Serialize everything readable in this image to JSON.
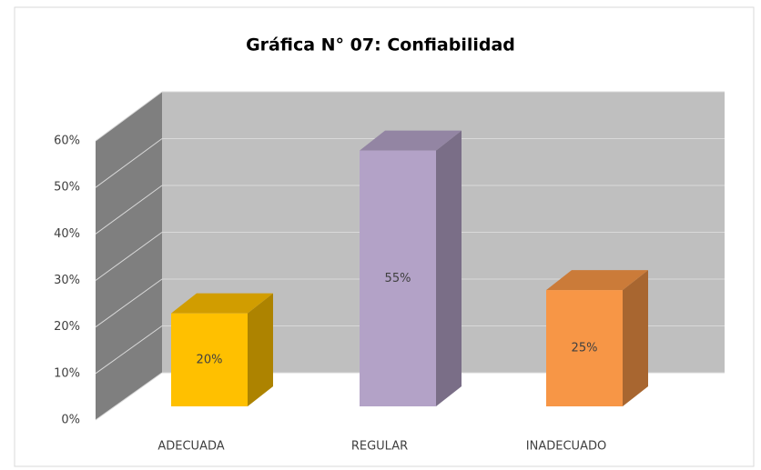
{
  "chart_data": {
    "type": "bar3d",
    "title": "Gráfica N° 07: Confiabilidad",
    "categories": [
      "ADECUADA",
      "REGULAR",
      "INADECUADO"
    ],
    "values": [
      20,
      55,
      25
    ],
    "value_labels": [
      "20%",
      "55%",
      "25%"
    ],
    "colors": [
      "#ffc000",
      "#b3a2c7",
      "#f79646"
    ],
    "ylim": [
      0,
      60
    ],
    "yticks": [
      {
        "value": 0,
        "label": "0%"
      },
      {
        "value": 10,
        "label": "10%"
      },
      {
        "value": 20,
        "label": "20%"
      },
      {
        "value": 30,
        "label": "30%"
      },
      {
        "value": 40,
        "label": "40%"
      },
      {
        "value": 50,
        "label": "50%"
      },
      {
        "value": 60,
        "label": "60%"
      }
    ],
    "grid": true
  }
}
